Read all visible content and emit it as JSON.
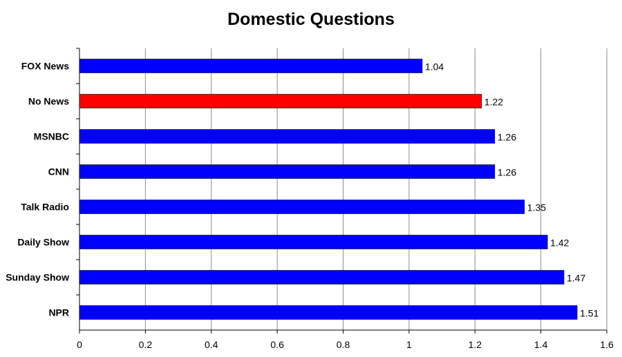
{
  "chart_data": {
    "type": "bar",
    "orientation": "horizontal",
    "title": "Domestic Questions",
    "categories": [
      "FOX News",
      "No News",
      "MSNBC",
      "CNN",
      "Talk Radio",
      "Daily Show",
      "Sunday Show",
      "NPR"
    ],
    "values": [
      1.04,
      1.22,
      1.26,
      1.26,
      1.35,
      1.42,
      1.47,
      1.51
    ],
    "value_labels": [
      "1.04",
      "1.22",
      "1.26",
      "1.26",
      "1.35",
      "1.42",
      "1.47",
      "1.51"
    ],
    "bar_colors": [
      "#0000ff",
      "#ff0000",
      "#0000ff",
      "#0000ff",
      "#0000ff",
      "#0000ff",
      "#0000ff",
      "#0000ff"
    ],
    "xlim": [
      0,
      1.6
    ],
    "xticks": [
      "0",
      "0.2",
      "0.4",
      "0.6",
      "0.8",
      "1",
      "1.2",
      "1.4",
      "1.6"
    ],
    "xlabel": "",
    "ylabel": "",
    "grid": true,
    "legend": "none"
  }
}
